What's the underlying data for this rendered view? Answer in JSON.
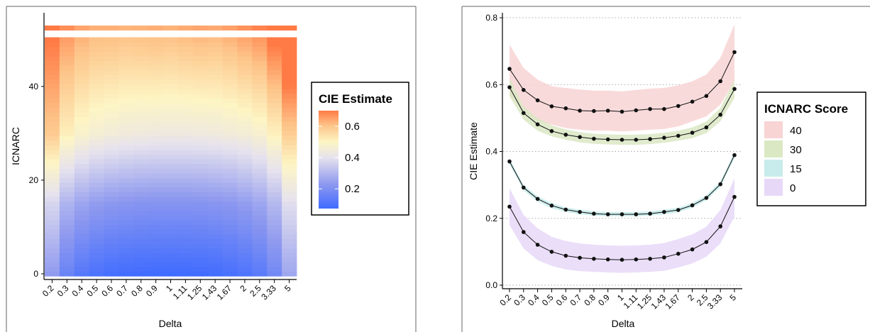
{
  "chart_data": [
    {
      "type": "heatmap",
      "xlabel": "Delta",
      "ylabel": "ICNARC",
      "x_categories": [
        "0.2",
        "0.3",
        "0.4",
        "0.5",
        "0.6",
        "0.7",
        "0.8",
        "0.9",
        "1",
        "1.11",
        "1.25",
        "1.43",
        "1.67",
        "2",
        "2.5",
        "3.33",
        "5"
      ],
      "y_ticks": [
        0,
        20,
        40
      ],
      "ylim": [
        0,
        53
      ],
      "legend": {
        "title": "CIE Estimate",
        "ticks": [
          0.2,
          0.4,
          0.6
        ],
        "colors": {
          "low": "#4169ff",
          "mid": "#fdf5c4",
          "high": "#ff7a45"
        },
        "range": [
          0.074,
          0.7
        ],
        "position": "right"
      }
    },
    {
      "type": "line",
      "xlabel": "Delta",
      "ylabel": "CIE Estimate",
      "x": [
        "0.2",
        "0.3",
        "0.4",
        "0.5",
        "0.6",
        "0.7",
        "0.8",
        "0.9",
        "1",
        "1.11",
        "1.25",
        "1.43",
        "1.67",
        "2",
        "2.5",
        "3.33",
        "5"
      ],
      "ylim": [
        0,
        0.8
      ],
      "y_ticks": [
        "0.0",
        "0.2",
        "0.4",
        "0.6",
        "0.8"
      ],
      "grid": "horizontal dotted",
      "legend": {
        "title": "ICNARC Score",
        "position": "right"
      },
      "series": [
        {
          "name": "40",
          "color": "#f8d4d4",
          "values": [
            0.647,
            0.584,
            0.553,
            0.535,
            0.529,
            0.522,
            0.521,
            0.522,
            0.519,
            0.523,
            0.527,
            0.527,
            0.536,
            0.549,
            0.566,
            0.61,
            0.697
          ],
          "lower": [
            0.57,
            0.52,
            0.49,
            0.48,
            0.47,
            0.465,
            0.462,
            0.462,
            0.46,
            0.462,
            0.465,
            0.467,
            0.475,
            0.49,
            0.505,
            0.54,
            0.61
          ],
          "upper": [
            0.72,
            0.65,
            0.615,
            0.595,
            0.59,
            0.585,
            0.582,
            0.582,
            0.58,
            0.584,
            0.588,
            0.59,
            0.598,
            0.61,
            0.63,
            0.68,
            0.78
          ]
        },
        {
          "name": "30",
          "color": "#dbe8c4",
          "values": [
            0.592,
            0.515,
            0.481,
            0.461,
            0.45,
            0.443,
            0.438,
            0.436,
            0.435,
            0.435,
            0.437,
            0.441,
            0.447,
            0.456,
            0.472,
            0.51,
            0.587
          ],
          "lower": [
            0.565,
            0.495,
            0.462,
            0.445,
            0.435,
            0.427,
            0.423,
            0.421,
            0.42,
            0.42,
            0.422,
            0.426,
            0.432,
            0.44,
            0.455,
            0.49,
            0.56
          ],
          "upper": [
            0.62,
            0.535,
            0.5,
            0.478,
            0.466,
            0.458,
            0.453,
            0.451,
            0.45,
            0.45,
            0.452,
            0.456,
            0.462,
            0.472,
            0.49,
            0.53,
            0.615
          ]
        },
        {
          "name": "15",
          "color": "#c8ecec",
          "values": [
            0.37,
            0.292,
            0.258,
            0.238,
            0.226,
            0.219,
            0.214,
            0.212,
            0.212,
            0.212,
            0.214,
            0.219,
            0.225,
            0.239,
            0.261,
            0.302,
            0.389
          ],
          "lower": [
            0.362,
            0.284,
            0.25,
            0.23,
            0.219,
            0.212,
            0.208,
            0.206,
            0.206,
            0.206,
            0.208,
            0.212,
            0.218,
            0.232,
            0.254,
            0.294,
            0.38
          ],
          "upper": [
            0.378,
            0.3,
            0.266,
            0.246,
            0.233,
            0.226,
            0.221,
            0.219,
            0.219,
            0.219,
            0.221,
            0.226,
            0.232,
            0.246,
            0.269,
            0.31,
            0.398
          ]
        },
        {
          "name": "0",
          "color": "#e8d8f8",
          "values": [
            0.235,
            0.159,
            0.121,
            0.1,
            0.088,
            0.082,
            0.079,
            0.077,
            0.076,
            0.077,
            0.079,
            0.083,
            0.094,
            0.107,
            0.129,
            0.176,
            0.264
          ],
          "lower": [
            0.18,
            0.11,
            0.075,
            0.058,
            0.047,
            0.042,
            0.04,
            0.038,
            0.037,
            0.038,
            0.04,
            0.043,
            0.053,
            0.065,
            0.085,
            0.125,
            0.205
          ],
          "upper": [
            0.29,
            0.21,
            0.17,
            0.145,
            0.132,
            0.125,
            0.121,
            0.119,
            0.118,
            0.119,
            0.121,
            0.126,
            0.138,
            0.152,
            0.175,
            0.225,
            0.32
          ]
        }
      ]
    }
  ]
}
